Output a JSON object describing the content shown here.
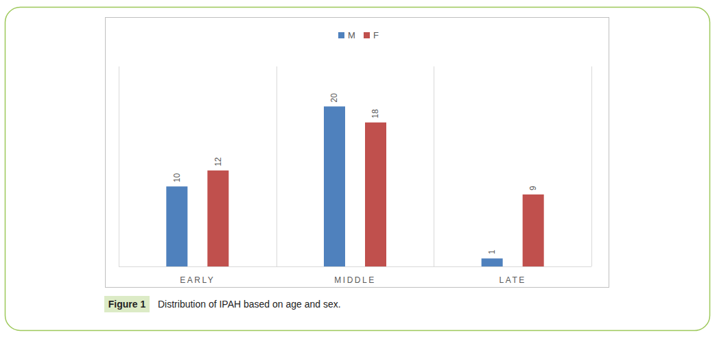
{
  "chart_data": {
    "type": "bar",
    "categories": [
      "EARLY",
      "MIDDLE",
      "LATE"
    ],
    "series": [
      {
        "name": "M",
        "color": "#4f81bd",
        "values": [
          10,
          20,
          1
        ]
      },
      {
        "name": "F",
        "color": "#c0504d",
        "values": [
          12,
          18,
          9
        ]
      }
    ],
    "ylim": [
      0,
      25
    ],
    "grid": false,
    "legend": "top",
    "data_labels": true,
    "tick_labels": "x"
  },
  "figure": {
    "label": "Figure 1",
    "caption": "Distribution of IPAH based on age and sex."
  }
}
